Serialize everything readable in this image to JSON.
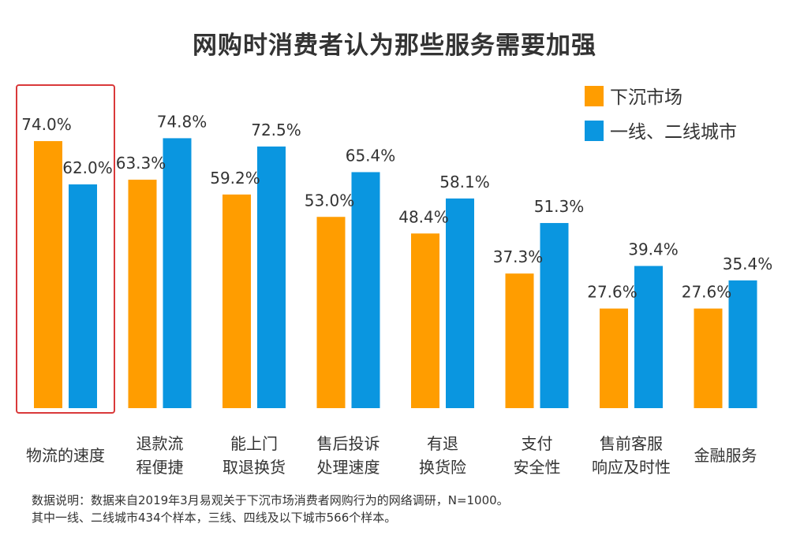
{
  "chart_data": {
    "type": "bar",
    "title": "网购时消费者认为那些服务需要加强",
    "xlabel": "",
    "ylabel": "",
    "ylim": [
      0,
      90
    ],
    "grid": false,
    "legend_position": "top-right",
    "categories": [
      [
        "物流的速度"
      ],
      [
        "退款流",
        "程便捷"
      ],
      [
        "能上门",
        "取退换货"
      ],
      [
        "售后投诉",
        "处理速度"
      ],
      [
        "有退",
        "换货险"
      ],
      [
        "支付",
        "安全性"
      ],
      [
        "售前客服",
        "响应及时性"
      ],
      [
        "金融服务"
      ]
    ],
    "series": [
      {
        "name": "下沉市场",
        "color": "#ff9d00",
        "values": [
          74.0,
          63.3,
          59.2,
          53.0,
          48.4,
          37.3,
          27.6,
          27.6
        ],
        "labels": [
          "74.0%",
          "63.3%",
          "59.2%",
          "53.0%",
          "48.4%",
          "37.3%",
          "27.6%",
          "27.6%"
        ]
      },
      {
        "name": "一线、二线城市",
        "color": "#0a96e0",
        "values": [
          62.0,
          74.8,
          72.5,
          65.4,
          58.1,
          51.3,
          39.4,
          35.4
        ],
        "labels": [
          "62.0%",
          "74.8%",
          "72.5%",
          "65.4%",
          "58.1%",
          "51.3%",
          "39.4%",
          "35.4%"
        ]
      }
    ],
    "highlight_category": "物流的速度",
    "highlight_color": "#d9393a"
  },
  "footnote": [
    "数据说明：数据来自2019年3月易观关于下沉市场消费者网购行为的网络调研，N=1000。",
    "其中一线、二线城市434个样本，三线、四线及以下城市566个样本。"
  ]
}
